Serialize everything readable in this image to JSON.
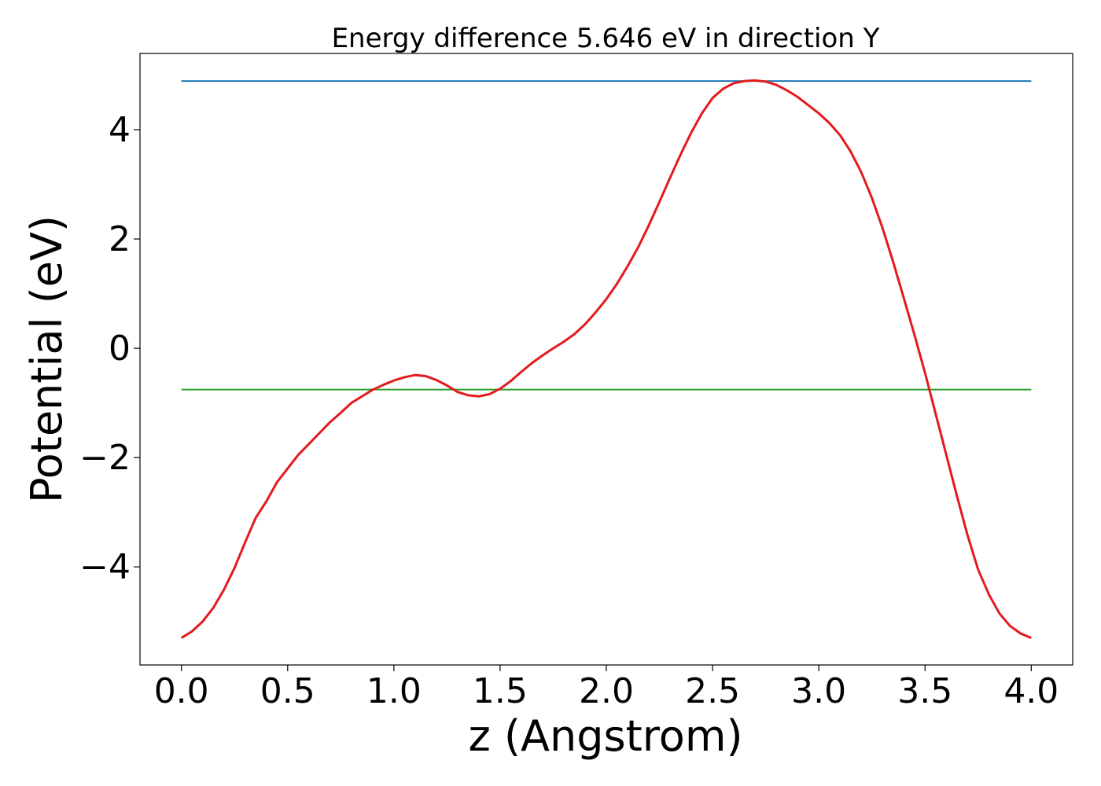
{
  "chart_data": {
    "type": "line",
    "title": "Energy difference 5.646 eV in direction Y",
    "xlabel": "z (Angstrom)",
    "ylabel": "Potential (eV)",
    "xlim": [
      -0.195,
      4.195
    ],
    "ylim": [
      -5.795,
      5.395
    ],
    "xticks": [
      0.0,
      0.5,
      1.0,
      1.5,
      2.0,
      2.5,
      3.0,
      3.5,
      4.0
    ],
    "xtick_labels": [
      "0.0",
      "0.5",
      "1.0",
      "1.5",
      "2.0",
      "2.5",
      "3.0",
      "3.5",
      "4.0"
    ],
    "yticks": [
      -4,
      -2,
      0,
      2,
      4
    ],
    "ytick_labels": [
      "−4",
      "−2",
      "0",
      "2",
      "4"
    ],
    "grid": false,
    "series": [
      {
        "color": "#1f77b4",
        "x": [
          0.0,
          4.0
        ],
        "y": [
          4.89,
          4.89
        ]
      },
      {
        "color": "#2ca02c",
        "x": [
          0.0,
          4.0
        ],
        "y": [
          -0.756,
          -0.756
        ]
      },
      {
        "color": "#e41a1c",
        "x": [
          0.0,
          0.05,
          0.1,
          0.15,
          0.2,
          0.25,
          0.3,
          0.35,
          0.4,
          0.45,
          0.5,
          0.55,
          0.6,
          0.65,
          0.7,
          0.75,
          0.8,
          0.85,
          0.9,
          0.95,
          1.0,
          1.05,
          1.1,
          1.15,
          1.2,
          1.25,
          1.3,
          1.35,
          1.4,
          1.45,
          1.5,
          1.55,
          1.6,
          1.65,
          1.7,
          1.75,
          1.8,
          1.85,
          1.9,
          1.95,
          2.0,
          2.05,
          2.1,
          2.15,
          2.2,
          2.25,
          2.3,
          2.35,
          2.4,
          2.45,
          2.5,
          2.55,
          2.6,
          2.65,
          2.7,
          2.75,
          2.8,
          2.85,
          2.9,
          2.95,
          3.0,
          3.05,
          3.1,
          3.15,
          3.2,
          3.25,
          3.3,
          3.35,
          3.4,
          3.45,
          3.5,
          3.55,
          3.6,
          3.65,
          3.7,
          3.75,
          3.8,
          3.85,
          3.9,
          3.95,
          4.0
        ],
        "y": [
          -5.3,
          -5.18,
          -5.0,
          -4.75,
          -4.42,
          -4.02,
          -3.55,
          -3.1,
          -2.8,
          -2.45,
          -2.2,
          -1.95,
          -1.75,
          -1.55,
          -1.35,
          -1.18,
          -1.0,
          -0.88,
          -0.76,
          -0.67,
          -0.59,
          -0.53,
          -0.49,
          -0.51,
          -0.58,
          -0.68,
          -0.8,
          -0.86,
          -0.88,
          -0.84,
          -0.74,
          -0.6,
          -0.43,
          -0.27,
          -0.13,
          0.0,
          0.12,
          0.26,
          0.44,
          0.66,
          0.9,
          1.18,
          1.5,
          1.85,
          2.25,
          2.68,
          3.12,
          3.55,
          3.95,
          4.3,
          4.58,
          4.75,
          4.85,
          4.89,
          4.9,
          4.88,
          4.82,
          4.72,
          4.6,
          4.45,
          4.3,
          4.12,
          3.9,
          3.6,
          3.22,
          2.75,
          2.2,
          1.58,
          0.92,
          0.25,
          -0.45,
          -1.2,
          -1.95,
          -2.7,
          -3.42,
          -4.05,
          -4.5,
          -4.85,
          -5.08,
          -5.22,
          -5.3
        ]
      }
    ]
  }
}
